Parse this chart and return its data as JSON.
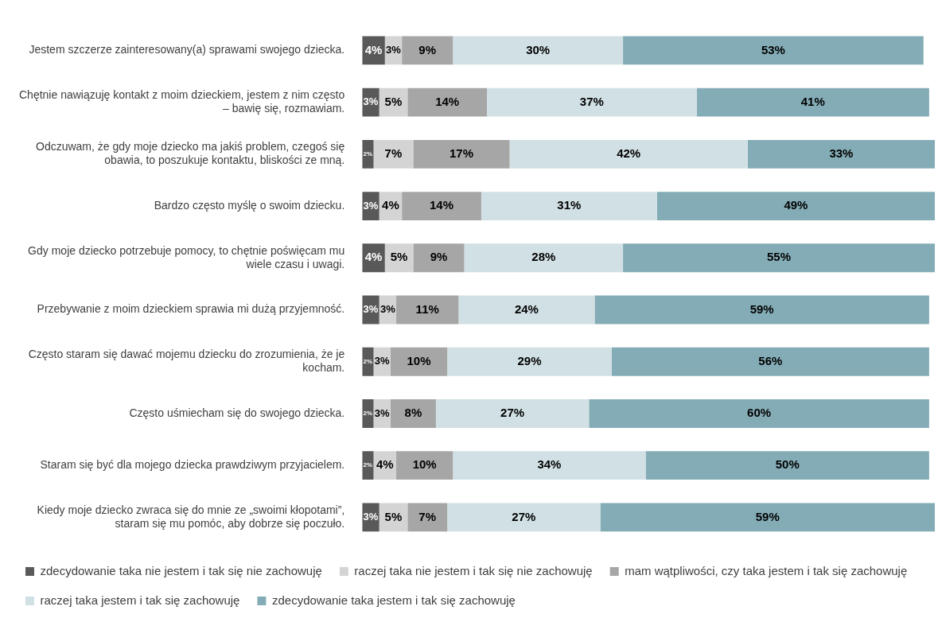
{
  "chart_data": {
    "type": "bar",
    "orientation": "horizontal",
    "stacked": true,
    "relative": false,
    "categories": [
      "Jestem szczerze zainteresowany(a) sprawami swojego dziecka.",
      "Chętnie nawiązuję kontakt z moim dzieckiem, jestem z nim często – bawię się, rozmawiam.",
      "Odczuwam, że gdy moje dziecko ma jakiś problem, czegoś się obawia, to poszukuje kontaktu, bliskości ze mną.",
      "Bardzo często myślę o swoim dziecku.",
      "Gdy moje dziecko potrzebuje pomocy, to chętnie poświęcam mu wiele czasu i uwagi.",
      "Przebywanie z moim dzieckiem sprawia mi dużą przyjemność.",
      "Często staram się dawać mojemu dziecku do zrozumienia, że je kocham.",
      "Często uśmiecham się do swojego dziecka.",
      "Staram się być dla mojego dziecka prawdziwym przyjacielem.",
      "Kiedy moje dziecko zwraca się do mnie ze „swoimi kłopotami”, staram się mu pomóc, aby dobrze się poczuło."
    ],
    "series": [
      {
        "name": "zdecydowanie taka nie jestem i tak się nie zachowuję",
        "color": "#595959",
        "values": [
          4,
          3,
          2,
          3,
          4,
          3,
          2,
          2,
          2,
          3
        ],
        "value_labels": [
          "4%",
          "3%",
          "2%",
          "3%",
          "4%",
          "3%",
          "2%",
          "2%",
          "2%",
          "3%"
        ]
      },
      {
        "name": "raczej taka nie jestem i tak się nie zachowuję",
        "color": "#d4d4d4",
        "values": [
          3,
          5,
          7,
          4,
          5,
          3,
          3,
          3,
          4,
          5
        ],
        "value_labels": [
          "3%",
          "5%",
          "7%",
          "4%",
          "5%",
          "3%",
          "3%",
          "3%",
          "4%",
          "5%"
        ]
      },
      {
        "name": "mam wątpliwości, czy taka jestem i tak się zachowuję",
        "color": "#a6a6a6",
        "values": [
          9,
          14,
          17,
          14,
          9,
          11,
          10,
          8,
          10,
          7
        ],
        "value_labels": [
          "9%",
          "14%",
          "17%",
          "14%",
          "9%",
          "11%",
          "10%",
          "8%",
          "10%",
          "7%"
        ]
      },
      {
        "name": "raczej taka jestem i tak się zachowuję",
        "color": "#d1e0e4",
        "values": [
          30,
          37,
          42,
          31,
          28,
          24,
          29,
          27,
          34,
          27
        ],
        "value_labels": [
          "30%",
          "37%",
          "42%",
          "31%",
          "28%",
          "24%",
          "29%",
          "27%",
          "34%",
          "27%"
        ]
      },
      {
        "name": "zdecydowanie taka jestem i tak się zachowuję",
        "color": "#84acb6",
        "values": [
          53,
          41,
          33,
          49,
          55,
          59,
          56,
          60,
          50,
          59
        ],
        "value_labels": [
          "53%",
          "41%",
          "33%",
          "49%",
          "55%",
          "59%",
          "56%",
          "60%",
          "50%",
          "59%"
        ]
      }
    ],
    "xlim": [
      0,
      101
    ],
    "legend": "bottom",
    "tick_labels": "y"
  }
}
